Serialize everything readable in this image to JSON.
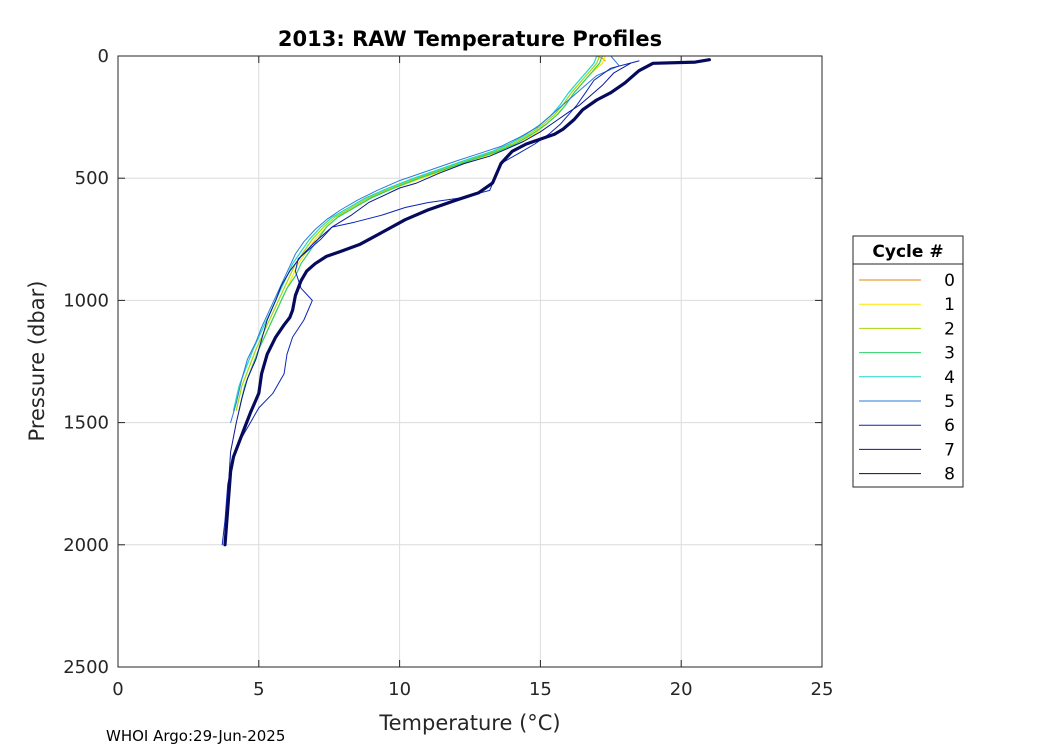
{
  "chart_data": {
    "type": "line",
    "title": "2013: RAW Temperature Profiles",
    "xlabel": "Temperature (°C)",
    "ylabel": "Pressure (dbar)",
    "xlim": [
      0,
      25
    ],
    "ylim": [
      0,
      2500
    ],
    "y_reversed": true,
    "x_ticks": [
      "0",
      "5",
      "10",
      "15",
      "20",
      "25"
    ],
    "y_ticks": [
      "0",
      "500",
      "1000",
      "1500",
      "2000",
      "2500"
    ],
    "grid": true,
    "legend": {
      "title": "Cycle #",
      "placement": "outside-right"
    },
    "series": [
      {
        "name": "0",
        "color": "#e08a00",
        "width": 1,
        "x": [
          17.0,
          17.2,
          17.3
        ],
        "y": [
          0,
          10,
          20
        ]
      },
      {
        "name": "1",
        "color": "#ffe600",
        "width": 1.2,
        "x": [
          17.3,
          17.2,
          16.8,
          16.5,
          16.2,
          15.9,
          15.6,
          15.2,
          14.8,
          14.2,
          13.6,
          12.8,
          11.8,
          10.8,
          9.8,
          9.0,
          8.4,
          7.8,
          7.4,
          7.0,
          6.7,
          6.4,
          6.2,
          6.0,
          5.8,
          5.6,
          5.4,
          5.2,
          5.0,
          4.8,
          4.5,
          4.3
        ],
        "y": [
          0,
          30,
          70,
          110,
          150,
          200,
          240,
          280,
          320,
          360,
          390,
          420,
          460,
          500,
          540,
          580,
          620,
          660,
          700,
          750,
          800,
          850,
          900,
          950,
          1000,
          1050,
          1100,
          1150,
          1200,
          1260,
          1350,
          1450
        ]
      },
      {
        "name": "2",
        "color": "#a6d608",
        "width": 1.2,
        "x": [
          17.1,
          17.0,
          16.7,
          16.4,
          16.1,
          15.8,
          15.5,
          15.1,
          14.6,
          14.0,
          13.4,
          12.6,
          11.6,
          10.6,
          9.7,
          8.9,
          8.3,
          7.7,
          7.3,
          6.9,
          6.6,
          6.3,
          6.1,
          5.9,
          5.7,
          5.5,
          5.3,
          5.1,
          4.9,
          4.7,
          4.4,
          4.2
        ],
        "y": [
          0,
          30,
          70,
          110,
          150,
          200,
          240,
          280,
          320,
          360,
          390,
          420,
          460,
          500,
          540,
          580,
          620,
          660,
          700,
          750,
          800,
          850,
          900,
          950,
          1000,
          1050,
          1100,
          1150,
          1200,
          1260,
          1350,
          1450
        ]
      },
      {
        "name": "3",
        "color": "#2ecf6a",
        "width": 1.2,
        "x": [
          17.2,
          17.1,
          16.8,
          16.5,
          16.2,
          15.9,
          15.6,
          15.2,
          14.7,
          14.1,
          13.5,
          12.7,
          11.7,
          10.7,
          9.8,
          9.0,
          8.4,
          7.8,
          7.4,
          7.1,
          6.8,
          6.5,
          6.3,
          6.0,
          5.8,
          5.6,
          5.4,
          5.2,
          5.0,
          4.8,
          4.5,
          4.3
        ],
        "y": [
          0,
          30,
          70,
          110,
          150,
          200,
          240,
          280,
          320,
          360,
          390,
          420,
          460,
          500,
          540,
          580,
          620,
          660,
          700,
          750,
          800,
          850,
          900,
          950,
          1000,
          1050,
          1100,
          1150,
          1200,
          1260,
          1350,
          1450
        ]
      },
      {
        "name": "4",
        "color": "#1ed8c4",
        "width": 1.2,
        "x": [
          17.0,
          16.9,
          16.6,
          16.3,
          16.0,
          15.7,
          15.4,
          15.0,
          14.5,
          13.9,
          13.3,
          12.5,
          11.5,
          10.5,
          9.6,
          8.8,
          8.2,
          7.6,
          7.2,
          6.8,
          6.5,
          6.2,
          6.0,
          5.8,
          5.6,
          5.4,
          5.2,
          5.0,
          4.8,
          4.6,
          4.3,
          4.1
        ],
        "y": [
          0,
          30,
          70,
          110,
          150,
          200,
          240,
          280,
          320,
          360,
          390,
          420,
          460,
          500,
          540,
          580,
          620,
          660,
          700,
          750,
          800,
          850,
          900,
          950,
          1000,
          1050,
          1100,
          1150,
          1200,
          1260,
          1350,
          1450
        ]
      },
      {
        "name": "5",
        "color": "#2a7ad8",
        "width": 1,
        "x": [
          17.5,
          17.8,
          17.0,
          16.6,
          16.2,
          15.8,
          15.4,
          14.9,
          14.3,
          13.6,
          12.8,
          12.0,
          11.0,
          10.0,
          9.2,
          8.5,
          7.9,
          7.4,
          7.0,
          6.6,
          6.3,
          6.1,
          5.9,
          5.7,
          5.5,
          5.3,
          5.1,
          4.9,
          4.6,
          4.4,
          4.2,
          4.0
        ],
        "y": [
          0,
          40,
          80,
          120,
          160,
          200,
          240,
          290,
          330,
          370,
          400,
          430,
          470,
          510,
          550,
          590,
          630,
          670,
          710,
          760,
          810,
          860,
          910,
          960,
          1010,
          1060,
          1110,
          1170,
          1240,
          1320,
          1420,
          1500
        ]
      },
      {
        "name": "6",
        "color": "#0b24b8",
        "width": 1,
        "x": [
          18.5,
          17.5,
          16.9,
          16.6,
          16.3,
          16.0,
          15.7,
          15.3,
          14.8,
          14.2,
          13.6,
          13.2,
          12.2,
          11.0,
          10.2,
          9.4,
          8.4,
          7.6,
          7.2,
          6.8,
          6.4,
          6.3,
          6.5,
          6.9,
          6.6,
          6.2,
          6.0,
          5.9,
          5.5,
          5.0,
          4.7,
          4.2,
          3.9,
          3.8,
          3.7
        ],
        "y": [
          20,
          50,
          100,
          150,
          200,
          240,
          280,
          320,
          360,
          400,
          440,
          550,
          580,
          600,
          620,
          650,
          680,
          700,
          750,
          790,
          830,
          880,
          950,
          1000,
          1080,
          1150,
          1220,
          1300,
          1380,
          1440,
          1500,
          1600,
          1750,
          1900,
          2000
        ]
      },
      {
        "name": "7",
        "color": "#0a1696",
        "width": 1,
        "x": [
          18.2,
          17.6,
          17.2,
          16.8,
          16.4,
          16.0,
          15.5,
          15.0,
          14.4,
          13.8,
          13.2,
          12.3,
          11.4,
          10.6,
          10.0,
          8.9,
          8.3,
          7.6,
          7.0,
          6.5,
          6.1,
          5.8,
          5.6,
          5.3,
          5.1,
          4.9,
          4.6,
          4.4,
          4.2,
          4.0,
          3.9,
          3.8
        ],
        "y": [
          30,
          70,
          120,
          160,
          200,
          230,
          270,
          310,
          350,
          380,
          410,
          440,
          480,
          520,
          540,
          600,
          650,
          700,
          760,
          820,
          880,
          940,
          1000,
          1080,
          1160,
          1240,
          1320,
          1400,
          1500,
          1620,
          1800,
          2000
        ]
      },
      {
        "name": "8",
        "color": "#050a5c",
        "width": 3.2,
        "x": [
          21.0,
          20.5,
          19.0,
          18.5,
          18.0,
          17.5,
          17.0,
          16.5,
          16.2,
          15.8,
          15.5,
          15.0,
          14.5,
          14.0,
          13.6,
          13.3,
          12.8,
          12.0,
          11.0,
          10.2,
          9.4,
          8.6,
          7.9,
          7.4,
          7.0,
          6.7,
          6.5,
          6.3,
          6.2,
          6.1,
          5.9,
          5.6,
          5.3,
          5.1,
          5.0,
          4.7,
          4.5,
          4.3,
          4.1,
          4.0,
          3.9,
          3.8
        ],
        "y": [
          15,
          25,
          30,
          60,
          110,
          150,
          180,
          220,
          260,
          300,
          320,
          340,
          360,
          390,
          440,
          520,
          560,
          590,
          630,
          670,
          720,
          770,
          800,
          820,
          850,
          880,
          920,
          980,
          1040,
          1070,
          1100,
          1150,
          1220,
          1300,
          1380,
          1460,
          1520,
          1580,
          1640,
          1700,
          1850,
          2000
        ]
      }
    ]
  },
  "footer": {
    "text": "WHOI Argo:29-Jun-2025"
  }
}
